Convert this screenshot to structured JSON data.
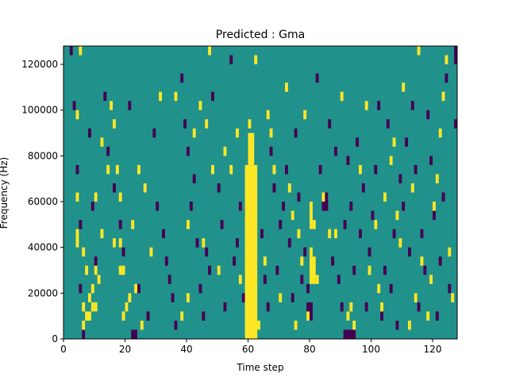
{
  "chart_data": {
    "type": "heatmap",
    "title": "Predicted : Gma",
    "xlabel": "Time step",
    "ylabel": "Frequency (Hz)",
    "xlim": [
      0,
      128
    ],
    "ylim": [
      0,
      128000
    ],
    "x_ticks": [
      {
        "value": 0,
        "label": "0"
      },
      {
        "value": 20,
        "label": "20"
      },
      {
        "value": 40,
        "label": "40"
      },
      {
        "value": 60,
        "label": "60"
      },
      {
        "value": 80,
        "label": "80"
      },
      {
        "value": 100,
        "label": "100"
      },
      {
        "value": 120,
        "label": "120"
      }
    ],
    "y_ticks": [
      {
        "value": 0,
        "label": "0"
      },
      {
        "value": 20000,
        "label": "20000"
      },
      {
        "value": 40000,
        "label": "40000"
      },
      {
        "value": 60000,
        "label": "60000"
      },
      {
        "value": 80000,
        "label": "80000"
      },
      {
        "value": 100000,
        "label": "100000"
      },
      {
        "value": 120000,
        "label": "120000"
      }
    ],
    "colormap": "viridis",
    "levels": {
      "background": {
        "value": 0,
        "color": "#21918c"
      },
      "low": {
        "value": -1,
        "color": "#440154"
      },
      "high": {
        "value": 1,
        "color": "#fde725"
      }
    },
    "grid": false,
    "high_cells": [
      [
        4,
        96000
      ],
      [
        4,
        60000
      ],
      [
        4,
        44000
      ],
      [
        4,
        40000
      ],
      [
        5,
        124000
      ],
      [
        6,
        4000
      ],
      [
        6,
        12000
      ],
      [
        6,
        36000
      ],
      [
        7,
        8000
      ],
      [
        7,
        28000
      ],
      [
        8,
        16000
      ],
      [
        8,
        8000
      ],
      [
        9,
        12000
      ],
      [
        9,
        20000
      ],
      [
        10,
        60000
      ],
      [
        10,
        28000
      ],
      [
        10,
        12000
      ],
      [
        11,
        24000
      ],
      [
        12,
        84000
      ],
      [
        12,
        44000
      ],
      [
        14,
        72000
      ],
      [
        15,
        100000
      ],
      [
        16,
        92000
      ],
      [
        16,
        40000
      ],
      [
        17,
        72000
      ],
      [
        18,
        60000
      ],
      [
        18,
        40000
      ],
      [
        18,
        28000
      ],
      [
        19,
        8000
      ],
      [
        20,
        12000
      ],
      [
        19,
        28000
      ],
      [
        21,
        16000
      ],
      [
        22,
        48000
      ],
      [
        23,
        20000
      ],
      [
        24,
        72000
      ],
      [
        25,
        4000
      ],
      [
        26,
        64000
      ],
      [
        28,
        36000
      ],
      [
        31,
        104000
      ],
      [
        36,
        104000
      ],
      [
        38,
        8000
      ],
      [
        40,
        48000
      ],
      [
        40,
        16000
      ],
      [
        42,
        88000
      ],
      [
        44,
        100000
      ],
      [
        45,
        40000
      ],
      [
        46,
        92000
      ],
      [
        47,
        124000
      ],
      [
        48,
        72000
      ],
      [
        50,
        28000
      ],
      [
        52,
        80000
      ],
      [
        54,
        72000
      ],
      [
        56,
        88000
      ],
      [
        57,
        24000
      ],
      [
        59,
        32000
      ],
      [
        61,
        4000
      ],
      [
        62,
        120000
      ],
      [
        63,
        4000
      ],
      [
        65,
        32000
      ],
      [
        66,
        96000
      ],
      [
        67,
        88000
      ],
      [
        68,
        72000
      ],
      [
        70,
        16000
      ],
      [
        72,
        108000
      ],
      [
        73,
        64000
      ],
      [
        74,
        52000
      ],
      [
        75,
        4000
      ],
      [
        76,
        44000
      ],
      [
        77,
        32000
      ],
      [
        78,
        96000
      ],
      [
        79,
        8000
      ],
      [
        80,
        36000
      ],
      [
        81,
        48000
      ],
      [
        82,
        24000
      ],
      [
        84,
        60000
      ],
      [
        86,
        44000
      ],
      [
        88,
        44000
      ],
      [
        90,
        104000
      ],
      [
        92,
        8000
      ],
      [
        93,
        12000
      ],
      [
        94,
        4000
      ],
      [
        96,
        72000
      ],
      [
        98,
        100000
      ],
      [
        99,
        28000
      ],
      [
        101,
        48000
      ],
      [
        102,
        20000
      ],
      [
        103,
        12000
      ],
      [
        104,
        60000
      ],
      [
        106,
        76000
      ],
      [
        107,
        84000
      ],
      [
        108,
        52000
      ],
      [
        109,
        40000
      ],
      [
        110,
        108000
      ],
      [
        112,
        4000
      ],
      [
        113,
        64000
      ],
      [
        114,
        16000
      ],
      [
        115,
        124000
      ],
      [
        116,
        32000
      ],
      [
        118,
        8000
      ],
      [
        119,
        24000
      ],
      [
        120,
        56000
      ],
      [
        121,
        68000
      ],
      [
        122,
        88000
      ],
      [
        123,
        104000
      ],
      [
        124,
        120000
      ],
      [
        125,
        36000
      ],
      [
        126,
        16000
      ]
    ],
    "high_bands": [
      {
        "x": [
          59,
          63
        ],
        "y": [
          0,
          76000
        ]
      },
      {
        "x": [
          60,
          62
        ],
        "y": [
          76000,
          90000
        ]
      },
      {
        "x": [
          80,
          82
        ],
        "y": [
          24000,
          36000
        ]
      },
      {
        "x": [
          80,
          81
        ],
        "y": [
          48000,
          60000
        ]
      },
      {
        "x": [
          60,
          61
        ],
        "y": [
          92000,
          96000
        ]
      }
    ],
    "low_cells": [
      [
        2,
        124000
      ],
      [
        3,
        100000
      ],
      [
        4,
        72000
      ],
      [
        5,
        48000
      ],
      [
        5,
        20000
      ],
      [
        6,
        0
      ],
      [
        8,
        88000
      ],
      [
        9,
        56000
      ],
      [
        10,
        32000
      ],
      [
        11,
        24000
      ],
      [
        13,
        104000
      ],
      [
        14,
        80000
      ],
      [
        16,
        64000
      ],
      [
        18,
        48000
      ],
      [
        19,
        36000
      ],
      [
        21,
        100000
      ],
      [
        24,
        20000
      ],
      [
        27,
        8000
      ],
      [
        29,
        88000
      ],
      [
        30,
        56000
      ],
      [
        32,
        44000
      ],
      [
        33,
        32000
      ],
      [
        34,
        24000
      ],
      [
        35,
        16000
      ],
      [
        36,
        4000
      ],
      [
        38,
        112000
      ],
      [
        39,
        92000
      ],
      [
        40,
        80000
      ],
      [
        41,
        56000
      ],
      [
        42,
        68000
      ],
      [
        43,
        40000
      ],
      [
        44,
        20000
      ],
      [
        45,
        8000
      ],
      [
        46,
        36000
      ],
      [
        47,
        28000
      ],
      [
        48,
        104000
      ],
      [
        50,
        64000
      ],
      [
        51,
        48000
      ],
      [
        52,
        12000
      ],
      [
        54,
        120000
      ],
      [
        55,
        32000
      ],
      [
        56,
        40000
      ],
      [
        57,
        56000
      ],
      [
        58,
        16000
      ],
      [
        60,
        84000
      ],
      [
        64,
        44000
      ],
      [
        65,
        24000
      ],
      [
        66,
        12000
      ],
      [
        67,
        80000
      ],
      [
        68,
        64000
      ],
      [
        69,
        28000
      ],
      [
        70,
        48000
      ],
      [
        71,
        56000
      ],
      [
        72,
        72000
      ],
      [
        73,
        40000
      ],
      [
        74,
        16000
      ],
      [
        75,
        88000
      ],
      [
        76,
        60000
      ],
      [
        77,
        24000
      ],
      [
        78,
        36000
      ],
      [
        79,
        20000
      ],
      [
        82,
        112000
      ],
      [
        83,
        72000
      ],
      [
        85,
        56000
      ],
      [
        86,
        92000
      ],
      [
        87,
        32000
      ],
      [
        88,
        80000
      ],
      [
        89,
        24000
      ],
      [
        90,
        12000
      ],
      [
        91,
        48000
      ],
      [
        92,
        76000
      ],
      [
        93,
        56000
      ],
      [
        94,
        28000
      ],
      [
        95,
        84000
      ],
      [
        96,
        44000
      ],
      [
        97,
        64000
      ],
      [
        98,
        12000
      ],
      [
        99,
        36000
      ],
      [
        100,
        52000
      ],
      [
        101,
        72000
      ],
      [
        102,
        100000
      ],
      [
        103,
        8000
      ],
      [
        104,
        28000
      ],
      [
        105,
        92000
      ],
      [
        106,
        20000
      ],
      [
        107,
        44000
      ],
      [
        108,
        4000
      ],
      [
        109,
        68000
      ],
      [
        110,
        56000
      ],
      [
        111,
        84000
      ],
      [
        112,
        36000
      ],
      [
        113,
        100000
      ],
      [
        114,
        72000
      ],
      [
        115,
        12000
      ],
      [
        116,
        44000
      ],
      [
        117,
        28000
      ],
      [
        118,
        96000
      ],
      [
        119,
        76000
      ],
      [
        120,
        52000
      ],
      [
        121,
        8000
      ],
      [
        122,
        32000
      ],
      [
        123,
        60000
      ],
      [
        124,
        112000
      ],
      [
        125,
        20000
      ],
      [
        127,
        92000
      ]
    ],
    "low_bands": [
      {
        "x": [
          91,
          95
        ],
        "y": [
          0,
          4000
        ]
      },
      {
        "x": [
          22,
          24
        ],
        "y": [
          0,
          4000
        ]
      },
      {
        "x": [
          79,
          81
        ],
        "y": [
          8000,
          16000
        ]
      },
      {
        "x": [
          84,
          86
        ],
        "y": [
          56000,
          64000
        ]
      },
      {
        "x": [
          127,
          128
        ],
        "y": [
          120000,
          128000
        ]
      }
    ]
  }
}
